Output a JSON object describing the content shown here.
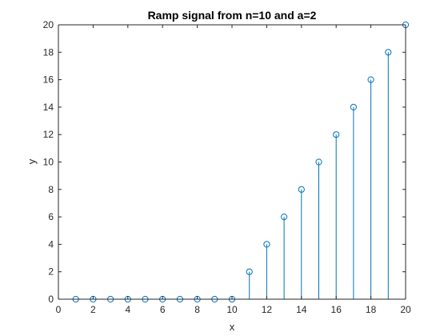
{
  "chart_data": {
    "type": "stem",
    "title": "Ramp signal from n=10 and a=2",
    "xlabel": "x",
    "ylabel": "y",
    "xlim": [
      0,
      20
    ],
    "ylim": [
      0,
      20
    ],
    "xticks": [
      0,
      2,
      4,
      6,
      8,
      10,
      12,
      14,
      16,
      18,
      20
    ],
    "yticks": [
      0,
      2,
      4,
      6,
      8,
      10,
      12,
      14,
      16,
      18,
      20
    ],
    "grid": false,
    "series": [
      {
        "x": [
          1,
          2,
          3,
          4,
          5,
          6,
          7,
          8,
          9,
          10,
          11,
          12,
          13,
          14,
          15,
          16,
          17,
          18,
          19,
          20
        ],
        "values": [
          0,
          0,
          0,
          0,
          0,
          0,
          0,
          0,
          0,
          0,
          2,
          4,
          6,
          8,
          10,
          12,
          14,
          16,
          18,
          20
        ],
        "color": "#0072BD",
        "marker": "circle"
      }
    ]
  }
}
